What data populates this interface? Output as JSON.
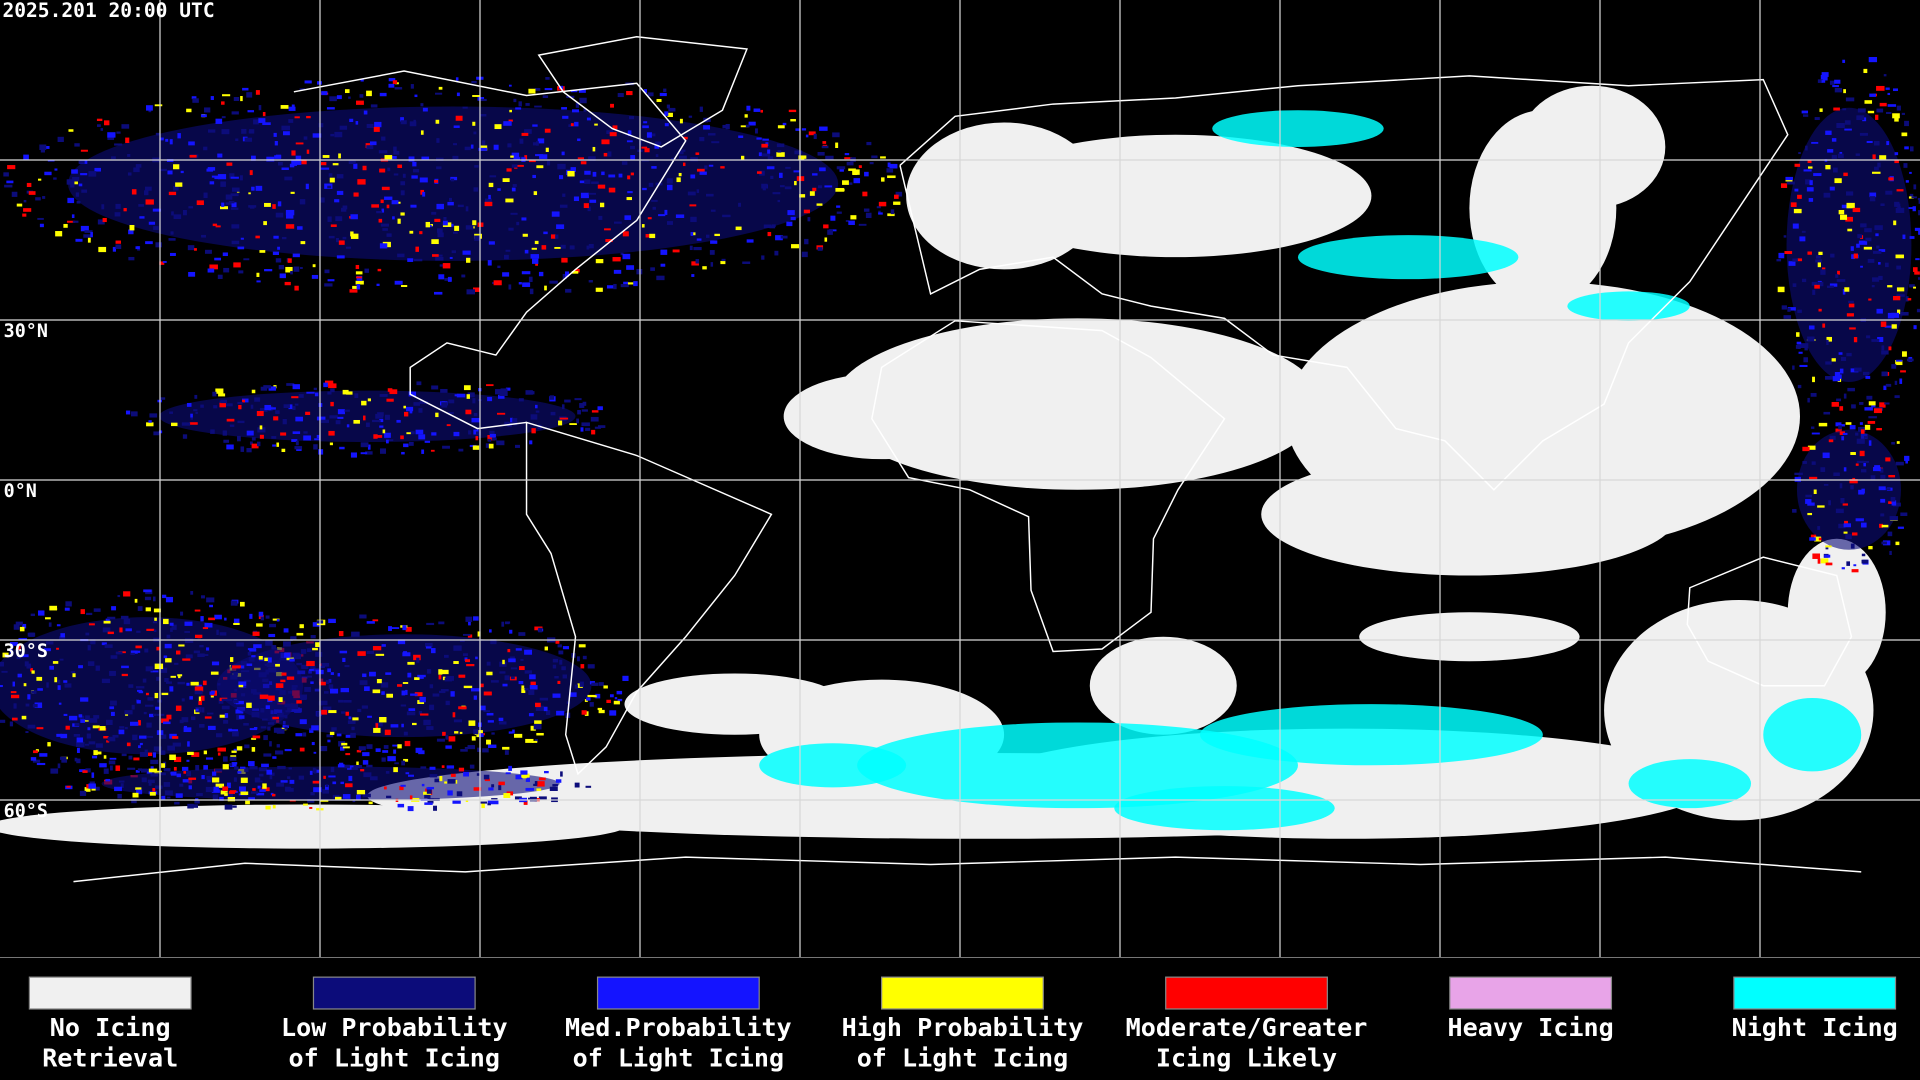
{
  "header": {
    "timestamp": "2025.201 20:00 UTC"
  },
  "lat_labels": [
    "30°N",
    "0°N",
    "30°S",
    "60°S"
  ],
  "legend": [
    {
      "color": "#f0f0f0",
      "lines": [
        "No Icing",
        "Retrieval"
      ]
    },
    {
      "color": "#0c0c7a",
      "lines": [
        "Low Probability",
        "of Light Icing"
      ]
    },
    {
      "color": "#1414ff",
      "lines": [
        "Med.Probability",
        "of Light Icing"
      ]
    },
    {
      "color": "#ffff00",
      "lines": [
        "High Probability",
        "of Light Icing"
      ]
    },
    {
      "color": "#ff0000",
      "lines": [
        "Moderate/Greater",
        "Icing Likely"
      ]
    },
    {
      "color": "#e8a4e8",
      "lines": [
        "Heavy Icing",
        ""
      ]
    },
    {
      "color": "#00ffff",
      "lines": [
        "Night Icing",
        ""
      ]
    }
  ]
}
